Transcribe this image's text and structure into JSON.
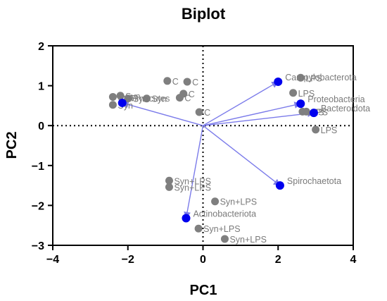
{
  "chart_data": {
    "type": "scatter",
    "title": "Biplot",
    "xlabel": "PC1",
    "ylabel": "PC2",
    "xlim": [
      -4,
      4
    ],
    "ylim": [
      -3,
      2
    ],
    "xticks": [
      "−4",
      "−2",
      "0",
      "2",
      "4"
    ],
    "yticks": [
      "2",
      "1",
      "0",
      "−1",
      "−2",
      "−3"
    ],
    "reference_lines": "dotted lines at x = 0 and y = 0",
    "colors": {
      "scores": "#7f7f7f",
      "loadings": "#0000ee",
      "arrows": "#7b7bea"
    },
    "scores": [
      {
        "x": -2.4,
        "y": 0.72,
        "label": "Syn"
      },
      {
        "x": -2.2,
        "y": 0.75,
        "label": "Syn"
      },
      {
        "x": -2.4,
        "y": 0.52,
        "label": "Syn"
      },
      {
        "x": -2.0,
        "y": 0.68,
        "label": "Syn"
      },
      {
        "x": -1.5,
        "y": 0.68,
        "label": "Syn"
      },
      {
        "x": -0.95,
        "y": 1.12,
        "label": "C"
      },
      {
        "x": -0.42,
        "y": 1.1,
        "label": "C"
      },
      {
        "x": -0.52,
        "y": 0.8,
        "label": "C"
      },
      {
        "x": -0.62,
        "y": 0.7,
        "label": "C"
      },
      {
        "x": -0.1,
        "y": 0.34,
        "label": "C"
      },
      {
        "x": 2.6,
        "y": 1.2,
        "label": "LPS"
      },
      {
        "x": 2.4,
        "y": 0.82,
        "label": "LPS"
      },
      {
        "x": 2.65,
        "y": 0.35,
        "label": "LPS"
      },
      {
        "x": 2.75,
        "y": 0.35,
        "label": "LPS"
      },
      {
        "x": 3.0,
        "y": -0.1,
        "label": "LPS"
      },
      {
        "x": -0.9,
        "y": -1.38,
        "label": "Syn+LPS"
      },
      {
        "x": -0.9,
        "y": -1.54,
        "label": "Syn+LPS"
      },
      {
        "x": 0.32,
        "y": -1.9,
        "label": "Syn+LPS"
      },
      {
        "x": -0.12,
        "y": -2.58,
        "label": "Syn+LPS"
      },
      {
        "x": 0.58,
        "y": -2.84,
        "label": "Syn+LPS"
      }
    ],
    "loadings": [
      {
        "name": "Campylobacterota",
        "x": 2.0,
        "y": 1.1
      },
      {
        "name": "Proteobacteria",
        "x": 2.6,
        "y": 0.55
      },
      {
        "name": "Bacteroidota",
        "x": 2.95,
        "y": 0.32
      },
      {
        "name": "Firmicutes",
        "x": -2.15,
        "y": 0.57
      },
      {
        "name": "Spirochaetota",
        "x": 2.05,
        "y": -1.5
      },
      {
        "name": "Actinobacteriota",
        "x": -0.45,
        "y": -2.32
      }
    ]
  }
}
